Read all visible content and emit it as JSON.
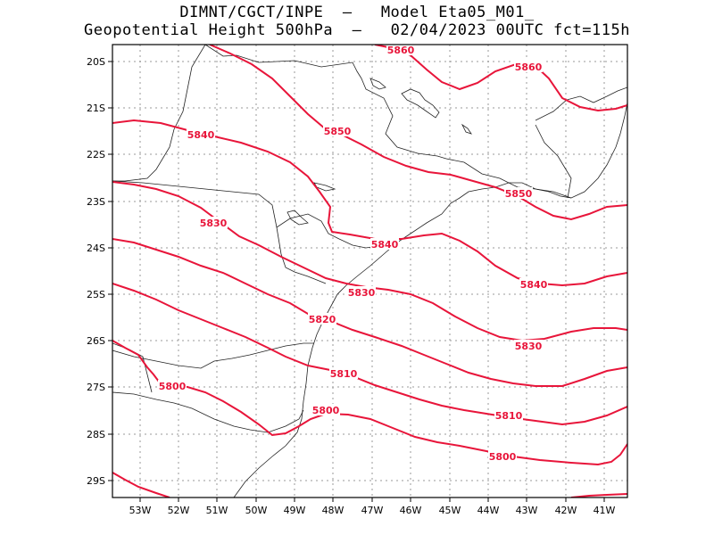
{
  "title_line1": "DIMNT/CGCT/INPE  –   Model Eta05_M01_",
  "title_line2": "Geopotential Height 500hPa  –   02/04/2023 00UTC fct=115h",
  "colors": {
    "contour": "#e8153a",
    "label": "#e8153a",
    "coast": "#222222",
    "grid": "#9a9a9a",
    "frame": "#000000"
  },
  "lat_ticks": [
    "20S",
    "21S",
    "22S",
    "23S",
    "24S",
    "25S",
    "26S",
    "27S",
    "28S",
    "29S"
  ],
  "lon_ticks": [
    "53W",
    "52W",
    "51W",
    "50W",
    "49W",
    "48W",
    "47W",
    "46W",
    "45W",
    "44W",
    "43W",
    "42W",
    "41W"
  ],
  "contour_labels": [
    {
      "text": "5860"
    },
    {
      "text": "5860"
    },
    {
      "text": "5850"
    },
    {
      "text": "5840"
    },
    {
      "text": "5850"
    },
    {
      "text": "5830"
    },
    {
      "text": "5840"
    },
    {
      "text": "5840"
    },
    {
      "text": "5830"
    },
    {
      "text": "5820"
    },
    {
      "text": "5830"
    },
    {
      "text": "5810"
    },
    {
      "text": "5800"
    },
    {
      "text": "5800"
    },
    {
      "text": "5810"
    },
    {
      "text": "5800"
    }
  ]
}
